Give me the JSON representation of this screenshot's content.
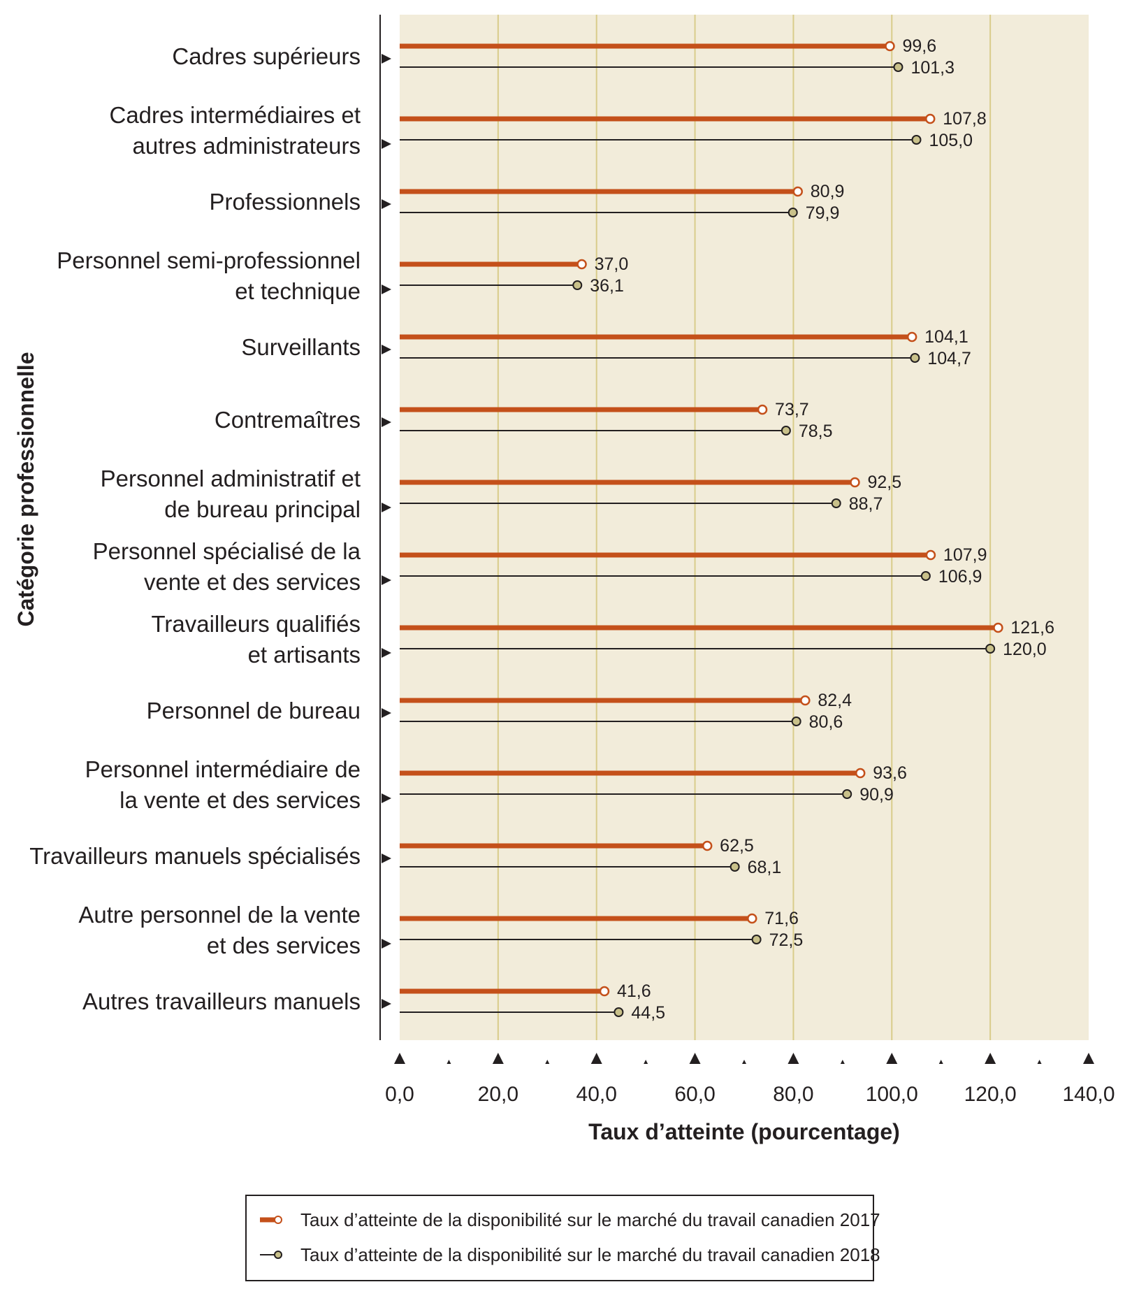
{
  "chart_data": {
    "type": "bar",
    "orientation": "horizontal",
    "xlabel": "Taux d’atteinte (pourcentage)",
    "ylabel": "Catégorie professionnelle",
    "xlim": [
      0,
      140
    ],
    "xticks": [
      "0,0",
      "20,0",
      "40,0",
      "60,0",
      "80,0",
      "100,0",
      "120,0",
      "140,0"
    ],
    "grid": true,
    "legend_position": "bottom",
    "categories": [
      [
        "Cadres supérieurs"
      ],
      [
        "Cadres intermédiaires et",
        "autres administrateurs"
      ],
      [
        "Professionnels"
      ],
      [
        "Personnel semi-professionnel",
        "et technique"
      ],
      [
        "Surveillants"
      ],
      [
        "Contremaîtres"
      ],
      [
        "Personnel administratif et",
        "de bureau principal"
      ],
      [
        "Personnel spécialisé de la",
        "vente et des services"
      ],
      [
        "Travailleurs qualifiés",
        "et artisants"
      ],
      [
        "Personnel de bureau"
      ],
      [
        "Personnel intermédiaire de",
        "la vente et des services"
      ],
      [
        "Travailleurs manuels spécialisés"
      ],
      [
        "Autre personnel de la vente",
        "et des services"
      ],
      [
        "Autres travailleurs manuels"
      ]
    ],
    "series": [
      {
        "name": "Taux d’atteinte de la disponibilité sur le marché du travail canadien 2017",
        "color": "#c4501a",
        "values": [
          99.6,
          107.8,
          80.9,
          37.0,
          104.1,
          73.7,
          92.5,
          107.9,
          121.6,
          82.4,
          93.6,
          62.5,
          71.6,
          41.6
        ],
        "labels": [
          "99,6",
          "107,8",
          "80,9",
          "37,0",
          "104,1",
          "73,7",
          "92,5",
          "107,9",
          "121,6",
          "82,4",
          "93,6",
          "62,5",
          "71,6",
          "41,6"
        ]
      },
      {
        "name": "Taux d’atteinte de la disponibilité sur le marché du travail canadien 2018",
        "color": "#231f20",
        "marker_color": "#c9c18a",
        "values": [
          101.3,
          105.0,
          79.9,
          36.1,
          104.7,
          78.5,
          88.7,
          106.9,
          120.0,
          80.6,
          90.9,
          68.1,
          72.5,
          44.5
        ],
        "labels": [
          "101,3",
          "105,0",
          "79,9",
          "36,1",
          "104,7",
          "78,5",
          "88,7",
          "106,9",
          "120,0",
          "80,6",
          "90,9",
          "68,1",
          "72,5",
          "44,5"
        ]
      }
    ]
  },
  "colors": {
    "plot_background": "#f2ecda",
    "gridline": "#d9cc8a",
    "axis": "#231f20"
  }
}
